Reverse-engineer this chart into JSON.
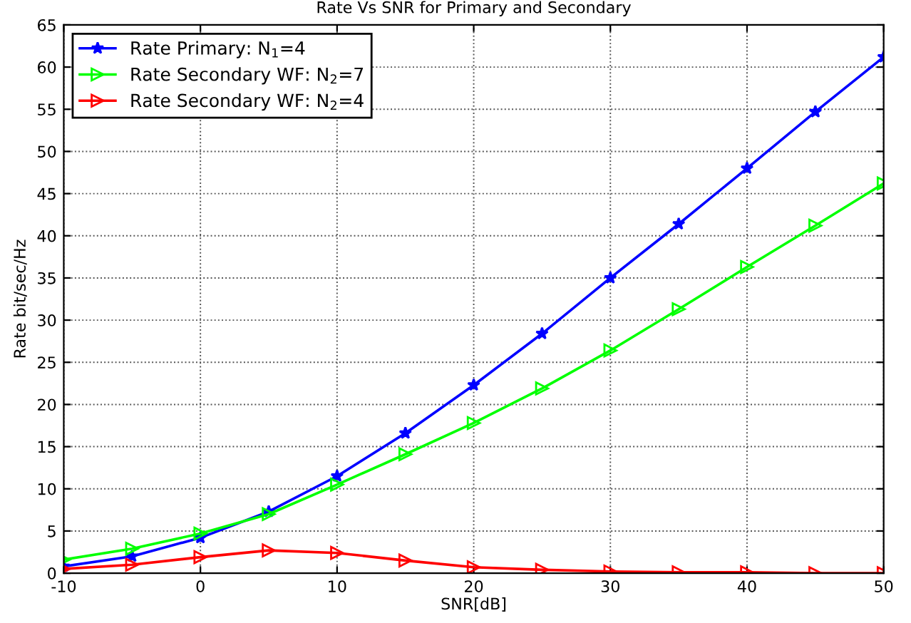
{
  "chart_data": {
    "type": "line",
    "title": "Rate Vs SNR for Primary and Secondary",
    "xlabel": "SNR[dB]",
    "ylabel": "Rate bit/sec/Hz",
    "x": [
      -10,
      -5,
      0,
      5,
      10,
      15,
      20,
      25,
      30,
      35,
      40,
      45,
      50
    ],
    "series": [
      {
        "name": "Rate Primary: N$_{1}$=4",
        "color": "#0000ff",
        "marker": "star",
        "values": [
          0.8,
          2.0,
          4.2,
          7.3,
          11.5,
          16.6,
          22.3,
          28.4,
          35.0,
          41.4,
          48.0,
          54.7,
          61.2
        ]
      },
      {
        "name": "Rate Secondary WF: N$_{2}$=7",
        "color": "#00ff00",
        "marker": "triangle",
        "values": [
          1.6,
          2.9,
          4.7,
          7.0,
          10.5,
          14.1,
          17.8,
          21.9,
          26.4,
          31.3,
          36.3,
          41.2,
          46.2
        ]
      },
      {
        "name": "Rate Secondary WF: N$_{2}$=4",
        "color": "#ff0000",
        "marker": "triangle",
        "values": [
          0.5,
          1.0,
          1.9,
          2.7,
          2.4,
          1.5,
          0.7,
          0.4,
          0.2,
          0.1,
          0.1,
          0.0,
          0.0
        ]
      }
    ],
    "xlim": [
      -10,
      50
    ],
    "xticks": [
      -10,
      0,
      10,
      20,
      30,
      40,
      50
    ],
    "ylim": [
      0,
      65
    ],
    "yticks": [
      0,
      5,
      10,
      15,
      20,
      25,
      30,
      35,
      40,
      45,
      50,
      55,
      60,
      65
    ],
    "grid": true,
    "legend": "top left",
    "line_style": "solid"
  }
}
